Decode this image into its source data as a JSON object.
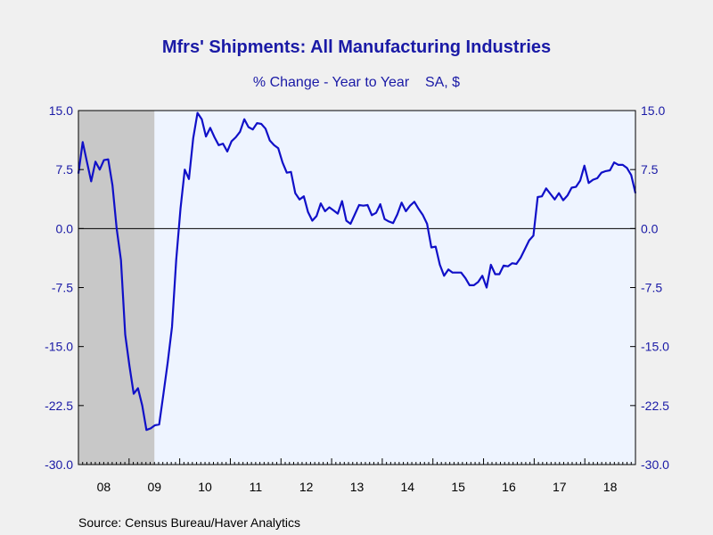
{
  "chart_data": {
    "type": "line",
    "title": "Mfrs' Shipments: All Manufacturing Industries",
    "subtitle": "% Change - Year to Year    SA, $",
    "source": "Source:  Census Bureau/Haver Analytics",
    "ylim": [
      -30,
      15
    ],
    "yticks": [
      "15.0",
      "7.5",
      "0.0",
      "-7.5",
      "-15.0",
      "-22.5",
      "-30.0"
    ],
    "ytick_values": [
      15,
      7.5,
      0,
      -7.5,
      -15,
      -22.5,
      -30
    ],
    "xlabels": [
      "08",
      "09",
      "10",
      "11",
      "12",
      "13",
      "14",
      "15",
      "16",
      "17",
      "18"
    ],
    "x_start": "2008-01",
    "x_end": "2018-12",
    "recession": {
      "start": "2008-01",
      "end": "2009-06"
    },
    "grid": false,
    "zero_line": true,
    "colors": {
      "line": "#1010c8",
      "plot_bg": "#eef4ff",
      "recession": "#c8c8c8",
      "axis": "#000000"
    },
    "series": [
      {
        "values": [
          7.0,
          11.0,
          8.5,
          6.0,
          8.5,
          7.5,
          8.7,
          8.8,
          5.5,
          0.0,
          -4.0,
          -13.5,
          -17.5,
          -21.0,
          -20.3,
          -22.5,
          -25.6,
          -25.4,
          -25.0,
          -24.9,
          -21.0,
          -17.0,
          -12.5,
          -4.0,
          2.5,
          7.5,
          6.3,
          11.5,
          14.7,
          13.9,
          11.7,
          12.8,
          11.6,
          10.6,
          10.8,
          9.8,
          11.1,
          11.6,
          12.3,
          13.9,
          12.9,
          12.6,
          13.4,
          13.3,
          12.7,
          11.2,
          10.6,
          10.2,
          8.4,
          7.1,
          7.2,
          4.5,
          3.7,
          4.1,
          2.1,
          1.0,
          1.6,
          3.2,
          2.2,
          2.7,
          2.3,
          1.9,
          3.5,
          1.0,
          0.6,
          1.8,
          3.0,
          2.9,
          3.0,
          1.7,
          2.0,
          3.1,
          1.2,
          0.9,
          0.7,
          1.8,
          3.3,
          2.2,
          2.9,
          3.4,
          2.5,
          1.7,
          0.6,
          -2.4,
          -2.3,
          -4.6,
          -6.0,
          -5.2,
          -5.6,
          -5.6,
          -5.6,
          -6.3,
          -7.2,
          -7.2,
          -6.8,
          -6.0,
          -7.5,
          -4.6,
          -5.8,
          -5.8,
          -4.7,
          -4.8,
          -4.4,
          -4.5,
          -3.7,
          -2.6,
          -1.5,
          -0.9,
          4.0,
          4.1,
          5.1,
          4.4,
          3.7,
          4.5,
          3.6,
          4.2,
          5.2,
          5.3,
          6.1,
          8.0,
          5.8,
          6.2,
          6.4,
          7.1,
          7.3,
          7.4,
          8.4,
          8.1,
          8.1,
          7.7,
          6.8,
          4.5
        ]
      }
    ]
  }
}
